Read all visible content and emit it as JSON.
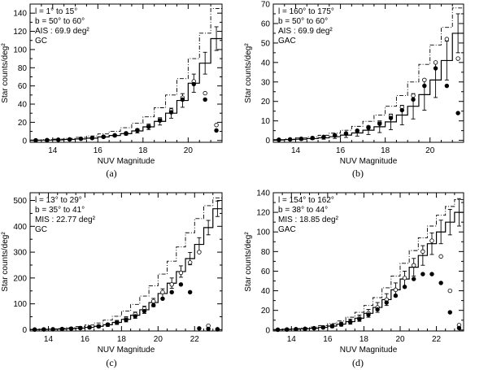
{
  "chart_data": [
    {
      "type": "line",
      "panel": "(a)",
      "title": "",
      "xlabel": "NUV Magnitude",
      "ylabel": "Star counts/deg²",
      "xlim": [
        13.0,
        21.5
      ],
      "ylim": [
        -2,
        150
      ],
      "xticks": [
        14,
        16,
        18,
        20
      ],
      "yticks": [
        0,
        20,
        40,
        60,
        80,
        100,
        120,
        140
      ],
      "annotations": [
        "l = 1° to 15°",
        "b = 50° to 60°",
        "AIS : 69.9 deg²",
        "GC"
      ],
      "legend": "top-left",
      "bin_edges": [
        13.0,
        13.5,
        14.0,
        14.5,
        15.0,
        15.5,
        16.0,
        16.5,
        17.0,
        17.5,
        18.0,
        18.5,
        19.0,
        19.5,
        20.0,
        20.5,
        21.0,
        21.5
      ],
      "series": [
        {
          "name": "model (solid histogram)",
          "style": "step-solid",
          "values": [
            0.2,
            0.4,
            0.7,
            1.1,
            1.7,
            2.6,
            3.9,
            5.5,
            7.5,
            10.5,
            15.0,
            21.0,
            30.0,
            44.0,
            63.0,
            85.0,
            112.0
          ],
          "errors": [
            0.1,
            0.2,
            0.3,
            0.4,
            0.5,
            0.7,
            0.9,
            1.2,
            1.6,
            2.2,
            3.0,
            4.0,
            5.5,
            7.5,
            10.0,
            12.0,
            13.0
          ]
        },
        {
          "name": "model (dash-dot histogram)",
          "style": "step-dashdot",
          "values": [
            0.5,
            0.9,
            1.5,
            2.3,
            3.4,
            5.0,
            7.2,
            10.0,
            14.0,
            19.0,
            26.0,
            36.0,
            50.0,
            68.0,
            90.0,
            118.0,
            145.0
          ]
        },
        {
          "name": "observed (open circles)",
          "style": "open-circle",
          "x": [
            13.25,
            13.75,
            14.25,
            14.75,
            15.25,
            15.75,
            16.25,
            16.75,
            17.25,
            17.75,
            18.25,
            18.75,
            19.25,
            19.75,
            20.25,
            20.75,
            21.25
          ],
          "values": [
            0.2,
            0.4,
            0.8,
            1.2,
            1.9,
            2.8,
            4.2,
            5.8,
            8.0,
            11.5,
            16.0,
            23.0,
            33.0,
            47.0,
            65.0,
            52.0,
            17.0
          ]
        },
        {
          "name": "observed (filled circles)",
          "style": "filled-circle",
          "x": [
            13.25,
            13.75,
            14.25,
            14.75,
            15.25,
            15.75,
            16.25,
            16.75,
            17.25,
            17.75,
            18.25,
            18.75,
            19.25,
            19.75,
            20.25,
            20.75,
            21.25
          ],
          "values": [
            0.2,
            0.4,
            0.8,
            1.2,
            1.9,
            2.7,
            4.0,
            5.5,
            7.5,
            11.0,
            15.0,
            22.0,
            31.0,
            45.0,
            62.0,
            45.0,
            11.0
          ]
        }
      ]
    },
    {
      "type": "line",
      "panel": "(b)",
      "title": "",
      "xlabel": "NUV Magnitude",
      "ylabel": "Star counts/deg²",
      "xlim": [
        13.0,
        21.5
      ],
      "ylim": [
        -1,
        70
      ],
      "xticks": [
        14,
        16,
        18,
        20
      ],
      "yticks": [
        0,
        10,
        20,
        30,
        40,
        50,
        60,
        70
      ],
      "annotations": [
        "l = 160° to 175°",
        "b = 50° to 60°",
        "AIS : 69.9 deg²",
        "GAC"
      ],
      "legend": "top-left",
      "bin_edges": [
        13.0,
        13.5,
        14.0,
        14.5,
        15.0,
        15.5,
        16.0,
        16.5,
        17.0,
        17.5,
        18.0,
        18.5,
        19.0,
        19.5,
        20.0,
        20.5,
        21.0,
        21.5
      ],
      "series": [
        {
          "name": "model (solid histogram)",
          "style": "step-solid",
          "values": [
            0.2,
            0.4,
            0.6,
            0.9,
            1.3,
            1.9,
            2.7,
            3.8,
            5.2,
            7.0,
            9.5,
            13.0,
            17.5,
            23.5,
            31.0,
            41.0,
            55.0
          ],
          "errors": [
            0.2,
            0.3,
            0.4,
            0.5,
            0.7,
            0.9,
            1.2,
            1.6,
            2.2,
            3.0,
            4.0,
            5.0,
            6.5,
            8.0,
            9.0,
            10.0,
            10.0
          ]
        },
        {
          "name": "model (dash-dot histogram)",
          "style": "step-dashdot",
          "values": [
            0.4,
            0.8,
            1.2,
            1.8,
            2.6,
            3.7,
            5.2,
            7.2,
            9.8,
            13.0,
            17.5,
            23.0,
            30.0,
            39.0,
            49.0,
            58.0,
            68.0
          ]
        },
        {
          "name": "observed (open circles)",
          "style": "open-circle",
          "x": [
            13.25,
            13.75,
            14.25,
            14.75,
            15.25,
            15.75,
            16.25,
            16.75,
            17.25,
            17.75,
            18.25,
            18.75,
            19.25,
            19.75,
            20.25,
            20.75,
            21.25
          ],
          "values": [
            0.3,
            0.5,
            0.8,
            1.2,
            1.8,
            2.6,
            3.6,
            5.0,
            6.8,
            9.0,
            12.5,
            17.0,
            23.0,
            31.0,
            40.0,
            52.0,
            42.0
          ]
        },
        {
          "name": "observed (filled circles)",
          "style": "filled-circle",
          "x": [
            13.25,
            13.75,
            14.25,
            14.75,
            15.25,
            15.75,
            16.25,
            16.75,
            17.25,
            17.75,
            18.25,
            18.75,
            19.25,
            19.75,
            20.25,
            20.75,
            21.25
          ],
          "values": [
            0.3,
            0.5,
            0.8,
            1.2,
            1.7,
            2.5,
            3.4,
            4.8,
            6.5,
            8.5,
            11.5,
            15.5,
            21.0,
            28.0,
            37.0,
            28.0,
            14.0
          ]
        }
      ]
    },
    {
      "type": "line",
      "panel": "(c)",
      "title": "",
      "xlabel": "NUV Magnitude",
      "ylabel": "Star counts/deg²",
      "xlim": [
        13.0,
        23.5
      ],
      "ylim": [
        -5,
        530
      ],
      "xticks": [
        14,
        16,
        18,
        20,
        22
      ],
      "yticks": [
        0,
        100,
        200,
        300,
        400,
        500
      ],
      "annotations": [
        "l = 13° to 29°",
        "b = 35° to 41°",
        "MIS : 22.77 deg²",
        "GC"
      ],
      "legend": "top-left",
      "bin_edges": [
        13.0,
        13.5,
        14.0,
        14.5,
        15.0,
        15.5,
        16.0,
        16.5,
        17.0,
        17.5,
        18.0,
        18.5,
        19.0,
        19.5,
        20.0,
        20.5,
        21.0,
        21.5,
        22.0,
        22.5,
        23.0,
        23.5
      ],
      "series": [
        {
          "name": "model (solid histogram)",
          "style": "step-solid",
          "values": [
            0.5,
            1,
            1.5,
            2.5,
            4,
            6,
            9,
            13,
            19,
            28,
            40,
            56,
            77,
            105,
            140,
            180,
            225,
            275,
            330,
            395,
            468
          ],
          "errors": [
            0.5,
            0.8,
            1,
            1.5,
            2,
            3,
            4,
            5,
            6,
            8,
            10,
            12,
            14,
            16,
            18,
            20,
            22,
            24,
            26,
            28,
            30
          ]
        },
        {
          "name": "model (dash-dot histogram)",
          "style": "step-dashdot",
          "values": [
            1,
            2,
            3,
            5,
            8,
            12,
            18,
            26,
            37,
            52,
            72,
            98,
            130,
            170,
            215,
            265,
            320,
            375,
            430,
            480,
            510
          ]
        },
        {
          "name": "observed (open circles)",
          "style": "open-circle",
          "x": [
            13.25,
            13.75,
            14.25,
            14.75,
            15.25,
            15.75,
            16.25,
            16.75,
            17.25,
            17.75,
            18.25,
            18.75,
            19.25,
            19.75,
            20.25,
            20.75,
            21.25,
            21.75,
            22.25,
            22.75,
            23.25
          ],
          "values": [
            0.5,
            1,
            1.5,
            2.5,
            4,
            6,
            9,
            13,
            20,
            29,
            42,
            60,
            82,
            110,
            145,
            175,
            220,
            260,
            300,
            15,
            2
          ]
        },
        {
          "name": "observed (filled circles)",
          "style": "filled-circle",
          "x": [
            13.25,
            13.75,
            14.25,
            14.75,
            15.25,
            15.75,
            16.25,
            16.75,
            17.25,
            17.75,
            18.25,
            18.75,
            19.25,
            19.75,
            20.25,
            20.75,
            21.25,
            21.75,
            22.25,
            22.75,
            23.25
          ],
          "values": [
            0.5,
            1,
            1.5,
            2.5,
            4,
            6,
            9,
            13,
            19,
            27,
            38,
            52,
            72,
            95,
            120,
            145,
            175,
            145,
            5,
            3,
            1
          ]
        }
      ]
    },
    {
      "type": "line",
      "panel": "(d)",
      "title": "",
      "xlabel": "NUV Magnitude",
      "ylabel": "Star counts/deg²",
      "xlim": [
        13.0,
        23.5
      ],
      "ylim": [
        -1,
        140
      ],
      "xticks": [
        14,
        16,
        18,
        20,
        22
      ],
      "yticks": [
        0,
        20,
        40,
        60,
        80,
        100,
        120,
        140
      ],
      "annotations": [
        "l = 154° to 162°",
        "b = 38° to 44°",
        "MIS : 18.85 deg²",
        "GAC"
      ],
      "legend": "top-left",
      "bin_edges": [
        13.0,
        13.5,
        14.0,
        14.5,
        15.0,
        15.5,
        16.0,
        16.5,
        17.0,
        17.5,
        18.0,
        18.5,
        19.0,
        19.5,
        20.0,
        20.5,
        21.0,
        21.5,
        22.0,
        22.5,
        23.0,
        23.5
      ],
      "series": [
        {
          "name": "model (solid histogram)",
          "style": "step-solid",
          "values": [
            0.3,
            0.5,
            0.8,
            1.2,
            1.8,
            2.7,
            4,
            6,
            8.5,
            12,
            17,
            23,
            31,
            41,
            52,
            64,
            76,
            88,
            100,
            110,
            120
          ],
          "errors": [
            0.3,
            0.4,
            0.5,
            0.7,
            0.9,
            1.2,
            1.6,
            2,
            2.6,
            3.2,
            4,
            5,
            6,
            7,
            8,
            9,
            10,
            11,
            12,
            13,
            14
          ]
        },
        {
          "name": "model (dash-dot histogram)",
          "style": "step-dashdot",
          "values": [
            0.5,
            0.9,
            1.4,
            2.1,
            3.1,
            4.5,
            6.5,
            9.2,
            13,
            18,
            25,
            33,
            43,
            55,
            68,
            81,
            94,
            106,
            117,
            126,
            133
          ]
        },
        {
          "name": "observed (open circles)",
          "style": "open-circle",
          "x": [
            13.25,
            13.75,
            14.25,
            14.75,
            15.25,
            15.75,
            16.25,
            16.75,
            17.25,
            17.75,
            18.25,
            18.75,
            19.25,
            19.75,
            20.25,
            20.75,
            21.25,
            21.75,
            22.25,
            22.75,
            23.25
          ],
          "values": [
            0.3,
            0.5,
            0.8,
            1.2,
            1.8,
            2.7,
            4,
            6,
            8.5,
            12,
            17,
            23,
            31,
            41,
            53,
            66,
            80,
            91,
            75,
            40,
            5
          ]
        },
        {
          "name": "observed (filled circles)",
          "style": "filled-circle",
          "x": [
            13.25,
            13.75,
            14.25,
            14.75,
            15.25,
            15.75,
            16.25,
            16.75,
            17.25,
            17.75,
            18.25,
            18.75,
            19.25,
            19.75,
            20.25,
            20.75,
            21.25,
            21.75,
            22.25,
            22.75,
            23.25
          ],
          "values": [
            0.3,
            0.5,
            0.8,
            1.2,
            1.8,
            2.6,
            3.8,
            5.5,
            8,
            11,
            15.5,
            21,
            28,
            35,
            44,
            52,
            57,
            57,
            48,
            18,
            2
          ]
        }
      ]
    }
  ],
  "captions": [
    "(a)",
    "(b)",
    "(c)",
    "(d)"
  ]
}
